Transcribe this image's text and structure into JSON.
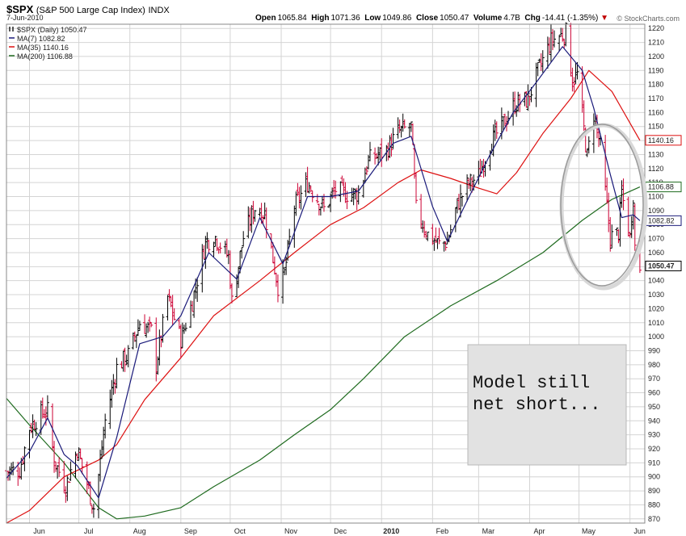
{
  "header": {
    "symbol": "$SPX",
    "description": "(S&P 500 Large Cap Index)",
    "exchange": "INDX",
    "date": "7-Jun-2010",
    "open_label": "Open",
    "open": "1065.84",
    "high_label": "High",
    "high": "1071.36",
    "low_label": "Low",
    "low": "1049.86",
    "close_label": "Close",
    "close": "1050.47",
    "volume_label": "Volume",
    "volume": "4.7B",
    "chg_label": "Chg",
    "chg": "-14.41 (-1.35%)",
    "chg_icon": "down-triangle-icon",
    "watermark": "© StockCharts.com"
  },
  "legend": [
    {
      "label": "$SPX (Daily) 1050.47",
      "color": "#000000",
      "icon": "ohlc-bar-icon"
    },
    {
      "label": "MA(7) 1082.82",
      "color": "#1a1a7a"
    },
    {
      "label": "MA(35) 1140.16",
      "color": "#dd1111"
    },
    {
      "label": "MA(200) 1106.88",
      "color": "#1f6b1f"
    }
  ],
  "annotation": {
    "lines": [
      "Model still",
      "net short..."
    ]
  },
  "colors": {
    "up": "#000000",
    "down": "#cc0033",
    "ma7": "#1a1a7a",
    "ma35": "#dd1111",
    "ma200": "#1f6b1f",
    "grid": "#d4d4d4"
  },
  "chart_data": {
    "type": "ohlc",
    "title": "$SPX (S&P 500 Large Cap Index) INDX",
    "ylim": [
      867,
      1223
    ],
    "xlim": [
      "2009-05-18",
      "2010-06-10"
    ],
    "y_ticks": [
      870,
      880,
      890,
      900,
      910,
      920,
      930,
      940,
      950,
      960,
      970,
      980,
      990,
      1000,
      1010,
      1020,
      1030,
      1040,
      1050,
      1060,
      1070,
      1080,
      1090,
      1100,
      1110,
      1120,
      1130,
      1140,
      1150,
      1160,
      1170,
      1180,
      1190,
      1200,
      1210,
      1220
    ],
    "x_ticks": [
      {
        "label": "Jun",
        "date": "2009-06-01"
      },
      {
        "label": "Jul",
        "date": "2009-07-01"
      },
      {
        "label": "Aug",
        "date": "2009-08-01"
      },
      {
        "label": "Sep",
        "date": "2009-09-01"
      },
      {
        "label": "Oct",
        "date": "2009-10-01"
      },
      {
        "label": "Nov",
        "date": "2009-11-01"
      },
      {
        "label": "Dec",
        "date": "2009-12-01"
      },
      {
        "label": "2010",
        "date": "2010-01-01",
        "bold": true
      },
      {
        "label": "Feb",
        "date": "2010-02-01"
      },
      {
        "label": "Mar",
        "date": "2010-03-01"
      },
      {
        "label": "Apr",
        "date": "2010-04-01"
      },
      {
        "label": "May",
        "date": "2010-05-01"
      },
      {
        "label": "Jun",
        "date": "2010-06-01"
      }
    ],
    "price_path": [
      [
        "2009-05-18",
        904
      ],
      [
        "2009-05-26",
        905
      ],
      [
        "2009-06-01",
        935
      ],
      [
        "2009-06-08",
        945
      ],
      [
        "2009-06-12",
        947
      ],
      [
        "2009-06-16",
        912
      ],
      [
        "2009-06-23",
        893
      ],
      [
        "2009-06-30",
        920
      ],
      [
        "2009-07-06",
        895
      ],
      [
        "2009-07-10",
        878
      ],
      [
        "2009-07-13",
        901
      ],
      [
        "2009-07-17",
        940
      ],
      [
        "2009-07-24",
        978
      ],
      [
        "2009-07-31",
        987
      ],
      [
        "2009-08-07",
        1010
      ],
      [
        "2009-08-14",
        1004
      ],
      [
        "2009-08-17",
        980
      ],
      [
        "2009-08-24",
        1028
      ],
      [
        "2009-09-01",
        998
      ],
      [
        "2009-09-08",
        1025
      ],
      [
        "2009-09-16",
        1068
      ],
      [
        "2009-09-22",
        1071
      ],
      [
        "2009-09-30",
        1057
      ],
      [
        "2009-10-02",
        1025
      ],
      [
        "2009-10-09",
        1071
      ],
      [
        "2009-10-16",
        1092
      ],
      [
        "2009-10-22",
        1088
      ],
      [
        "2009-10-30",
        1036
      ],
      [
        "2009-11-03",
        1045
      ],
      [
        "2009-11-09",
        1093
      ],
      [
        "2009-11-17",
        1110
      ],
      [
        "2009-11-27",
        1091
      ],
      [
        "2009-12-04",
        1105
      ],
      [
        "2009-12-10",
        1102
      ],
      [
        "2009-12-18",
        1102
      ],
      [
        "2009-12-24",
        1126
      ],
      [
        "2010-01-04",
        1133
      ],
      [
        "2010-01-11",
        1146
      ],
      [
        "2010-01-19",
        1150
      ],
      [
        "2010-01-22",
        1091
      ],
      [
        "2010-01-29",
        1073
      ],
      [
        "2010-02-05",
        1066
      ],
      [
        "2010-02-10",
        1068
      ],
      [
        "2010-02-16",
        1094
      ],
      [
        "2010-02-22",
        1108
      ],
      [
        "2010-03-01",
        1115
      ],
      [
        "2010-03-08",
        1138
      ],
      [
        "2010-03-15",
        1150
      ],
      [
        "2010-03-23",
        1166
      ],
      [
        "2010-03-31",
        1169
      ],
      [
        "2010-04-06",
        1189
      ],
      [
        "2010-04-14",
        1211
      ],
      [
        "2010-04-23",
        1217
      ],
      [
        "2010-04-27",
        1183
      ],
      [
        "2010-04-30",
        1187
      ],
      [
        "2010-05-06",
        1128
      ],
      [
        "2010-05-10",
        1159
      ],
      [
        "2010-05-14",
        1135
      ],
      [
        "2010-05-20",
        1071
      ],
      [
        "2010-05-25",
        1074
      ],
      [
        "2010-05-27",
        1103
      ],
      [
        "2010-06-01",
        1070
      ],
      [
        "2010-06-03",
        1102
      ],
      [
        "2010-06-04",
        1064
      ],
      [
        "2010-06-07",
        1050
      ]
    ],
    "ma7": [
      [
        "2009-05-18",
        899
      ],
      [
        "2009-06-01",
        918
      ],
      [
        "2009-06-12",
        942
      ],
      [
        "2009-06-22",
        916
      ],
      [
        "2009-06-30",
        908
      ],
      [
        "2009-07-13",
        885
      ],
      [
        "2009-07-24",
        928
      ],
      [
        "2009-08-07",
        995
      ],
      [
        "2009-08-21",
        1000
      ],
      [
        "2009-09-01",
        1015
      ],
      [
        "2009-09-18",
        1060
      ],
      [
        "2009-10-05",
        1041
      ],
      [
        "2009-10-19",
        1085
      ],
      [
        "2009-11-02",
        1052
      ],
      [
        "2009-11-17",
        1100
      ],
      [
        "2009-12-01",
        1100
      ],
      [
        "2009-12-18",
        1104
      ],
      [
        "2010-01-08",
        1138
      ],
      [
        "2010-01-19",
        1143
      ],
      [
        "2010-02-01",
        1093
      ],
      [
        "2010-02-10",
        1068
      ],
      [
        "2010-02-22",
        1097
      ],
      [
        "2010-03-08",
        1130
      ],
      [
        "2010-03-22",
        1160
      ],
      [
        "2010-04-06",
        1183
      ],
      [
        "2010-04-21",
        1207
      ],
      [
        "2010-05-03",
        1190
      ],
      [
        "2010-05-10",
        1163
      ],
      [
        "2010-05-20",
        1116
      ],
      [
        "2010-05-27",
        1085
      ],
      [
        "2010-06-03",
        1087
      ],
      [
        "2010-06-07",
        1082.82
      ]
    ],
    "ma35": [
      [
        "2009-05-18",
        867
      ],
      [
        "2009-06-01",
        876
      ],
      [
        "2009-06-22",
        900
      ],
      [
        "2009-07-13",
        912
      ],
      [
        "2009-07-24",
        923
      ],
      [
        "2009-08-10",
        955
      ],
      [
        "2009-09-01",
        985
      ],
      [
        "2009-09-21",
        1015
      ],
      [
        "2009-10-19",
        1040
      ],
      [
        "2009-11-09",
        1060
      ],
      [
        "2009-12-01",
        1080
      ],
      [
        "2009-12-21",
        1092
      ],
      [
        "2010-01-11",
        1110
      ],
      [
        "2010-01-25",
        1119
      ],
      [
        "2010-02-12",
        1113
      ],
      [
        "2010-03-01",
        1106
      ],
      [
        "2010-03-12",
        1102
      ],
      [
        "2010-03-24",
        1117
      ],
      [
        "2010-04-09",
        1145
      ],
      [
        "2010-04-26",
        1170
      ],
      [
        "2010-05-07",
        1190
      ],
      [
        "2010-05-21",
        1175
      ],
      [
        "2010-06-07",
        1140.16
      ]
    ],
    "ma200": [
      [
        "2009-05-18",
        956
      ],
      [
        "2009-06-01",
        937
      ],
      [
        "2009-06-22",
        910
      ],
      [
        "2009-07-13",
        878
      ],
      [
        "2009-07-24",
        870
      ],
      [
        "2009-08-10",
        872
      ],
      [
        "2009-09-01",
        878
      ],
      [
        "2009-09-21",
        893
      ],
      [
        "2009-10-19",
        912
      ],
      [
        "2009-11-09",
        930
      ],
      [
        "2009-12-01",
        948
      ],
      [
        "2009-12-21",
        970
      ],
      [
        "2010-01-15",
        1000
      ],
      [
        "2010-02-12",
        1022
      ],
      [
        "2010-03-12",
        1040
      ],
      [
        "2010-04-09",
        1060
      ],
      [
        "2010-05-03",
        1083
      ],
      [
        "2010-05-21",
        1098
      ],
      [
        "2010-06-07",
        1106.88
      ]
    ],
    "last_values": [
      {
        "value": 1140.16,
        "label": "1140.16",
        "color": "#dd1111"
      },
      {
        "value": 1106.88,
        "label": "1106.88",
        "color": "#1f6b1f"
      },
      {
        "value": 1082.82,
        "label": "1082.82",
        "color": "#1a1a7a"
      },
      {
        "value": 1050.47,
        "label": "1050.47",
        "color": "#000000",
        "bold": true
      }
    ]
  }
}
